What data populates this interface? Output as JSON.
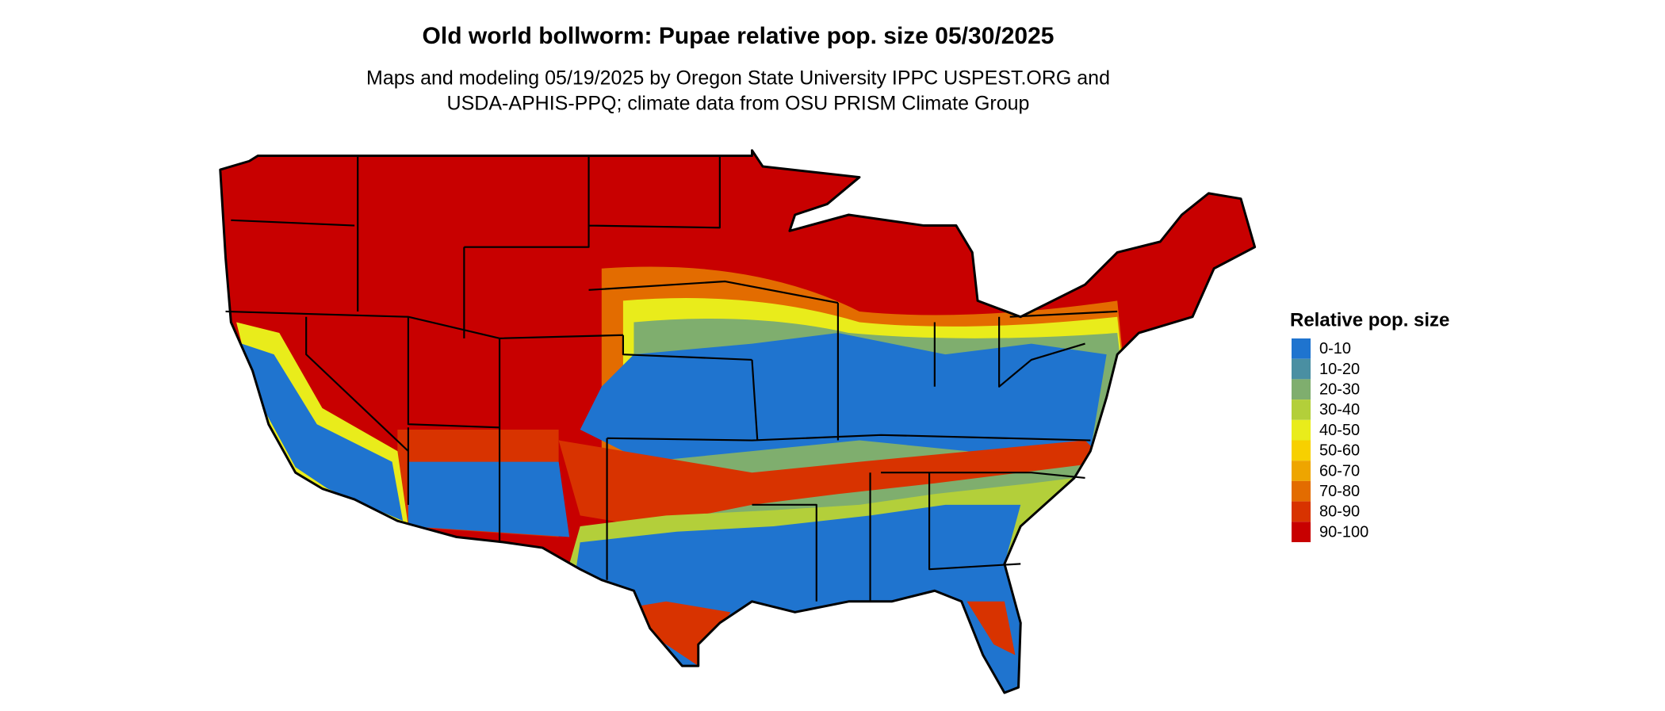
{
  "title": "Old world bollworm: Pupae relative pop. size 05/30/2025",
  "subtitle": [
    "Maps and modeling 05/19/2025 by Oregon State University IPPC USPEST.ORG and",
    "USDA-APHIS-PPQ; climate data from OSU PRISM Climate Group"
  ],
  "legend": {
    "title": "Relative pop. size",
    "items": [
      {
        "label": "0-10",
        "color": "#1f74cf"
      },
      {
        "label": "10-20",
        "color": "#4a8fa2"
      },
      {
        "label": "20-30",
        "color": "#7fae6e"
      },
      {
        "label": "30-40",
        "color": "#b3cf3a"
      },
      {
        "label": "40-50",
        "color": "#e9ec1b"
      },
      {
        "label": "50-60",
        "color": "#f7d000"
      },
      {
        "label": "60-70",
        "color": "#eea500"
      },
      {
        "label": "70-80",
        "color": "#e36c00"
      },
      {
        "label": "80-90",
        "color": "#d83300"
      },
      {
        "label": "90-100",
        "color": "#c80000"
      }
    ]
  }
}
